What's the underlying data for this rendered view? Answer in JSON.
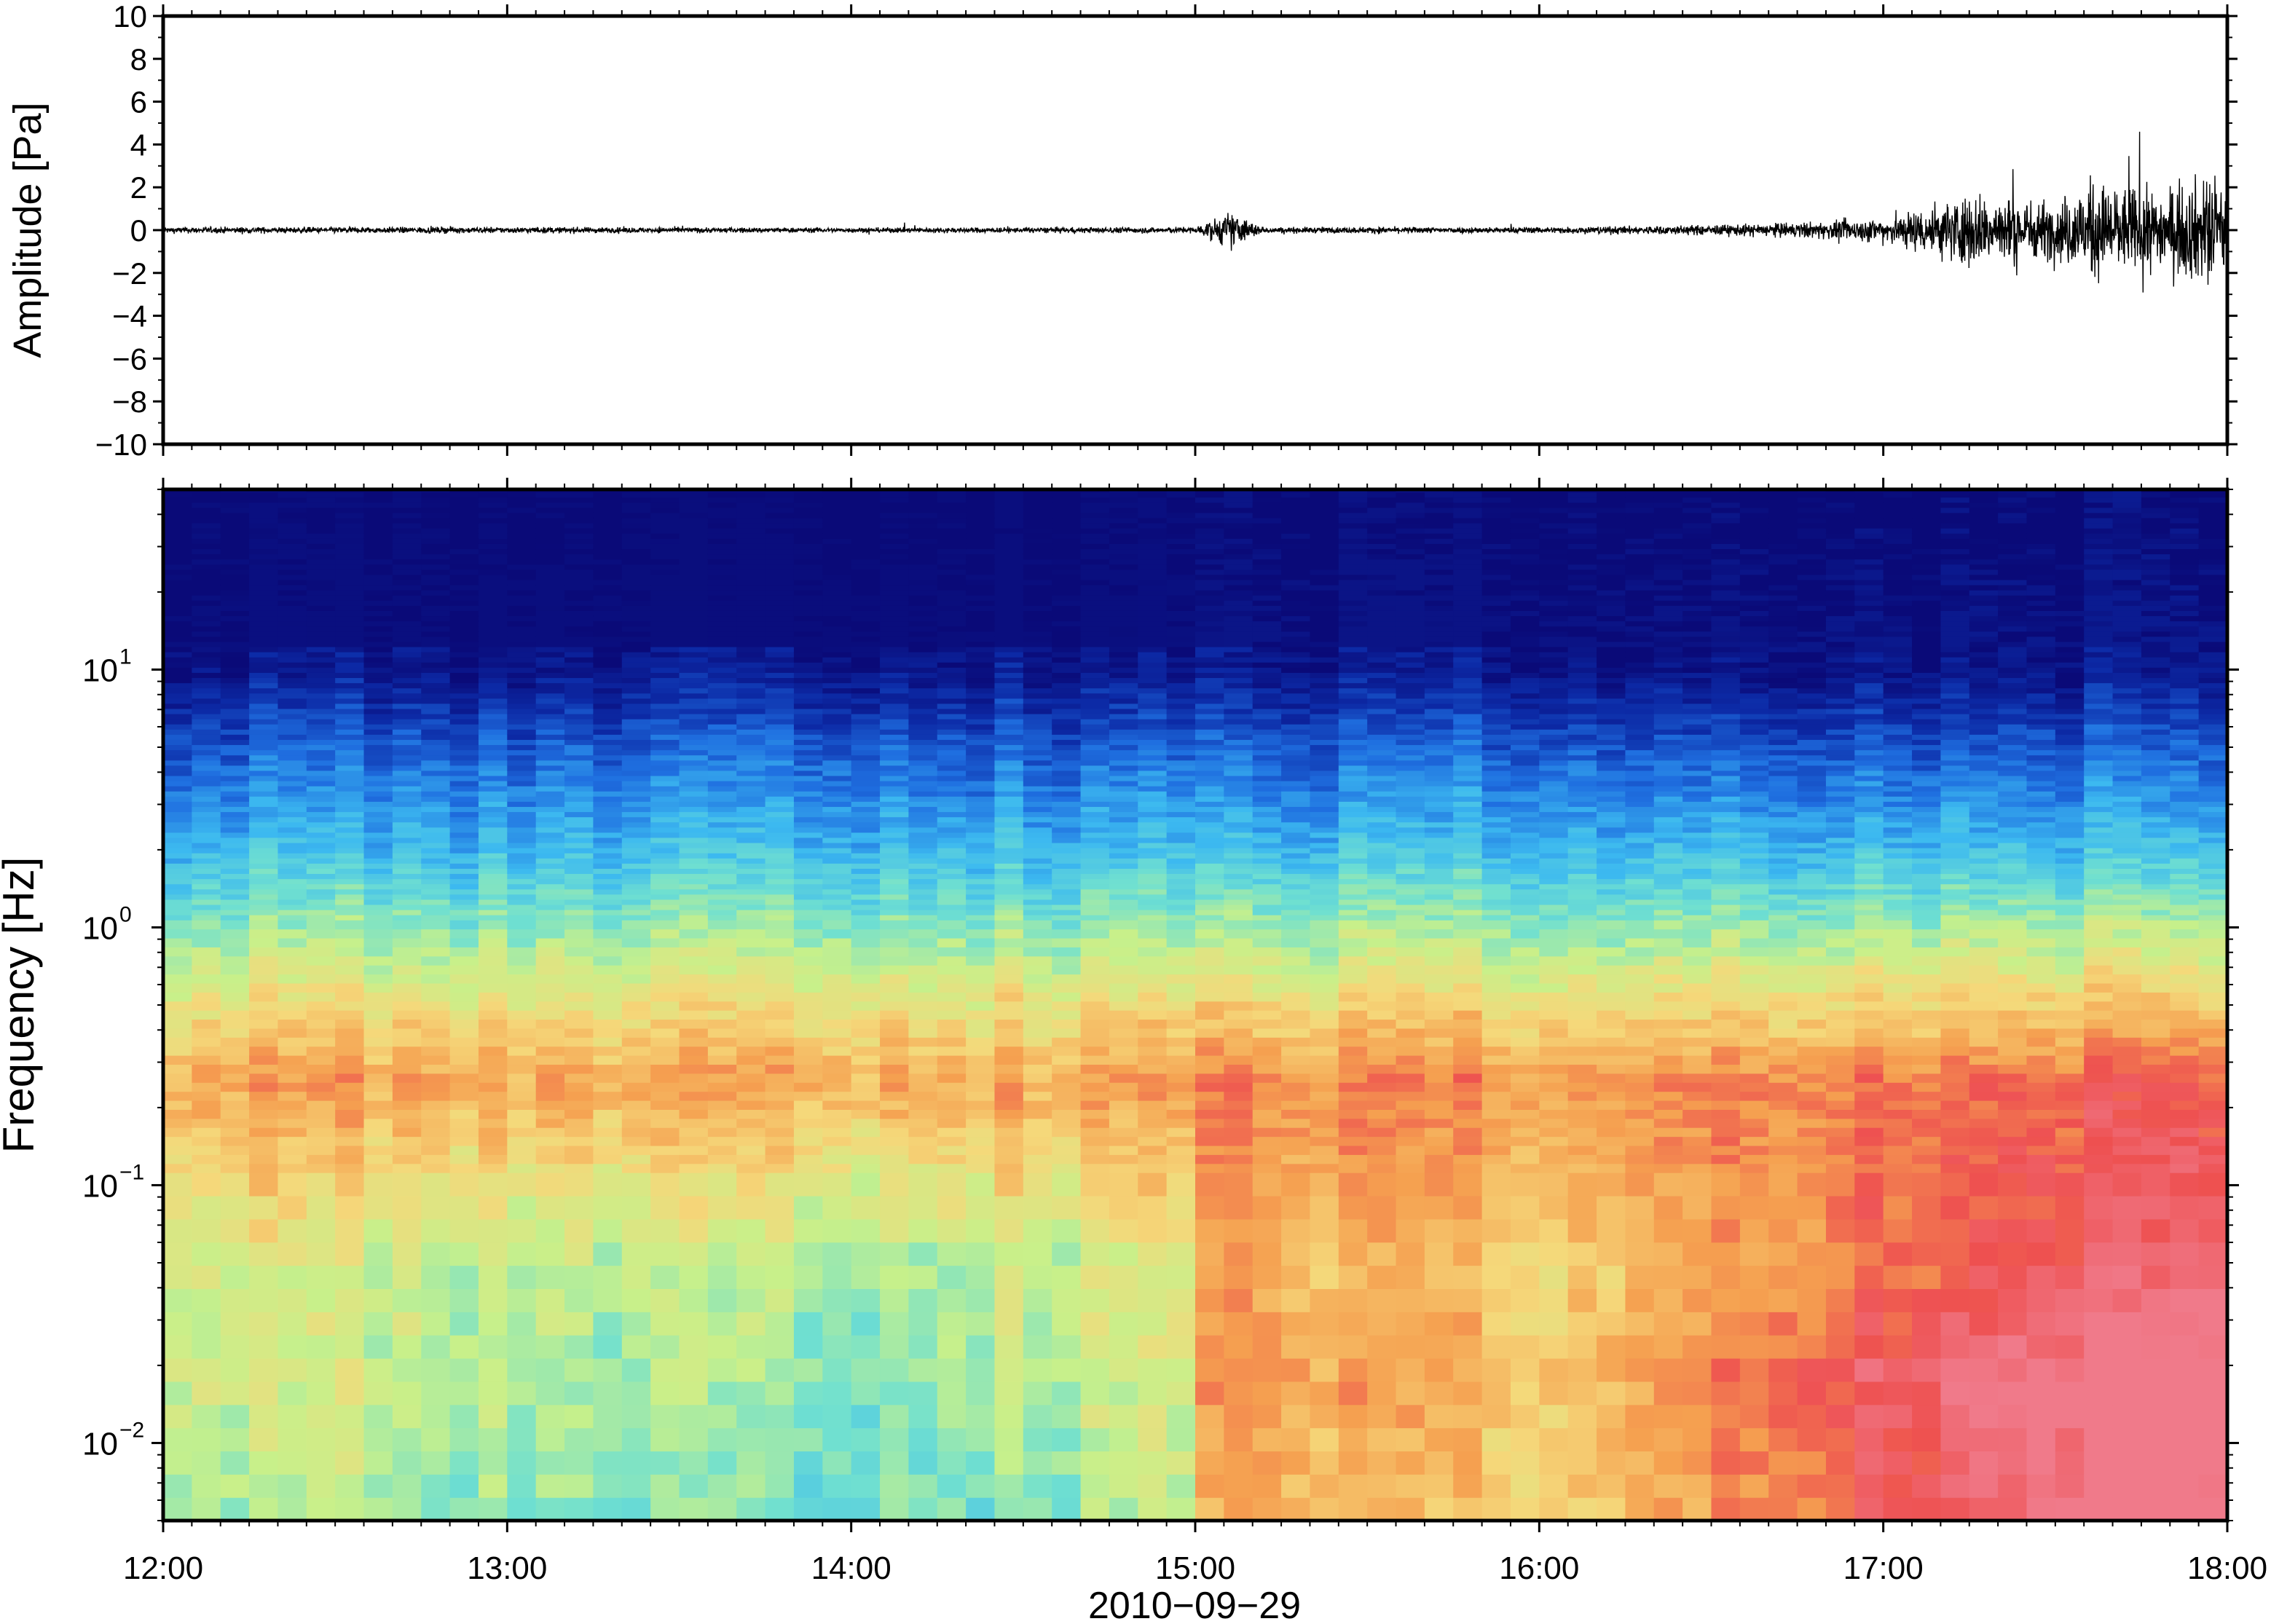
{
  "chart_data": [
    {
      "type": "line",
      "panel": "waveform",
      "ylabel": "Amplitude [Pa]",
      "ylim": [
        -10,
        10
      ],
      "y_ticks": [
        10,
        8,
        6,
        4,
        2,
        0,
        -2,
        -4,
        -6,
        -8,
        -10
      ],
      "y_tick_labels": [
        "10",
        "8",
        "6",
        "4",
        "2",
        "0",
        "−2",
        "−4",
        "−6",
        "−8",
        "−10"
      ],
      "xlim_hours": [
        12,
        18
      ],
      "envelope": [
        {
          "t": 12.0,
          "a": 0.15
        },
        {
          "t": 13.0,
          "a": 0.15
        },
        {
          "t": 14.0,
          "a": 0.12
        },
        {
          "t": 15.0,
          "a": 0.15
        },
        {
          "t": 15.1,
          "a": 0.9
        },
        {
          "t": 15.2,
          "a": 0.15
        },
        {
          "t": 16.0,
          "a": 0.15
        },
        {
          "t": 16.5,
          "a": 0.25
        },
        {
          "t": 16.8,
          "a": 0.4
        },
        {
          "t": 17.0,
          "a": 0.6
        },
        {
          "t": 17.25,
          "a": 1.8
        },
        {
          "t": 17.5,
          "a": 1.4
        },
        {
          "t": 17.6,
          "a": 2.4
        },
        {
          "t": 17.8,
          "a": 1.9
        },
        {
          "t": 17.95,
          "a": 2.8
        },
        {
          "t": 18.0,
          "a": 2.0
        }
      ]
    },
    {
      "type": "heatmap",
      "panel": "spectrogram",
      "ylabel": "Frequency [Hz]",
      "y_scale": "log",
      "ylim_hz": [
        0.005,
        50
      ],
      "y_ticks_hz": [
        10,
        1,
        0.1,
        0.01
      ],
      "y_tick_bases": [
        "10",
        "10",
        "10",
        "10"
      ],
      "y_tick_exponents": [
        "1",
        "0",
        "−1",
        "−2"
      ],
      "xlabel": "2010−09−29",
      "x_ticks": [
        "12:00",
        "13:00",
        "14:00",
        "15:00",
        "16:00",
        "17:00",
        "18:00"
      ],
      "xlim_hours": [
        12,
        18
      ],
      "colormap": [
        "#0a0a78",
        "#0c2aa6",
        "#1f6fe0",
        "#3cb9f0",
        "#70e0d0",
        "#c8f08a",
        "#f5d87a",
        "#f5a050",
        "#ee5050",
        "#f07a8a"
      ],
      "intensity_by_frequency": [
        {
          "hz": 40,
          "level": 0.0
        },
        {
          "hz": 10,
          "level": 0.05
        },
        {
          "hz": 5,
          "level": 0.2
        },
        {
          "hz": 2,
          "level": 0.35
        },
        {
          "hz": 1,
          "level": 0.5
        },
        {
          "hz": 0.5,
          "level": 0.65
        },
        {
          "hz": 0.25,
          "level": 0.78
        },
        {
          "hz": 0.15,
          "level": 0.72
        },
        {
          "hz": 0.05,
          "level": 0.6
        },
        {
          "hz": 0.02,
          "level": 0.6
        },
        {
          "hz": 0.005,
          "level": 0.55
        }
      ],
      "intensity_by_time": [
        {
          "t": 12.0,
          "low_freq_boost": 0.0
        },
        {
          "t": 13.0,
          "low_freq_boost": -0.05
        },
        {
          "t": 14.0,
          "low_freq_boost": -0.1
        },
        {
          "t": 15.0,
          "low_freq_boost": 0.0
        },
        {
          "t": 15.05,
          "low_freq_boost": 0.18
        },
        {
          "t": 16.0,
          "low_freq_boost": 0.1
        },
        {
          "t": 17.0,
          "low_freq_boost": 0.3
        },
        {
          "t": 17.5,
          "low_freq_boost": 0.38
        },
        {
          "t": 18.0,
          "low_freq_boost": 0.42
        }
      ]
    }
  ]
}
